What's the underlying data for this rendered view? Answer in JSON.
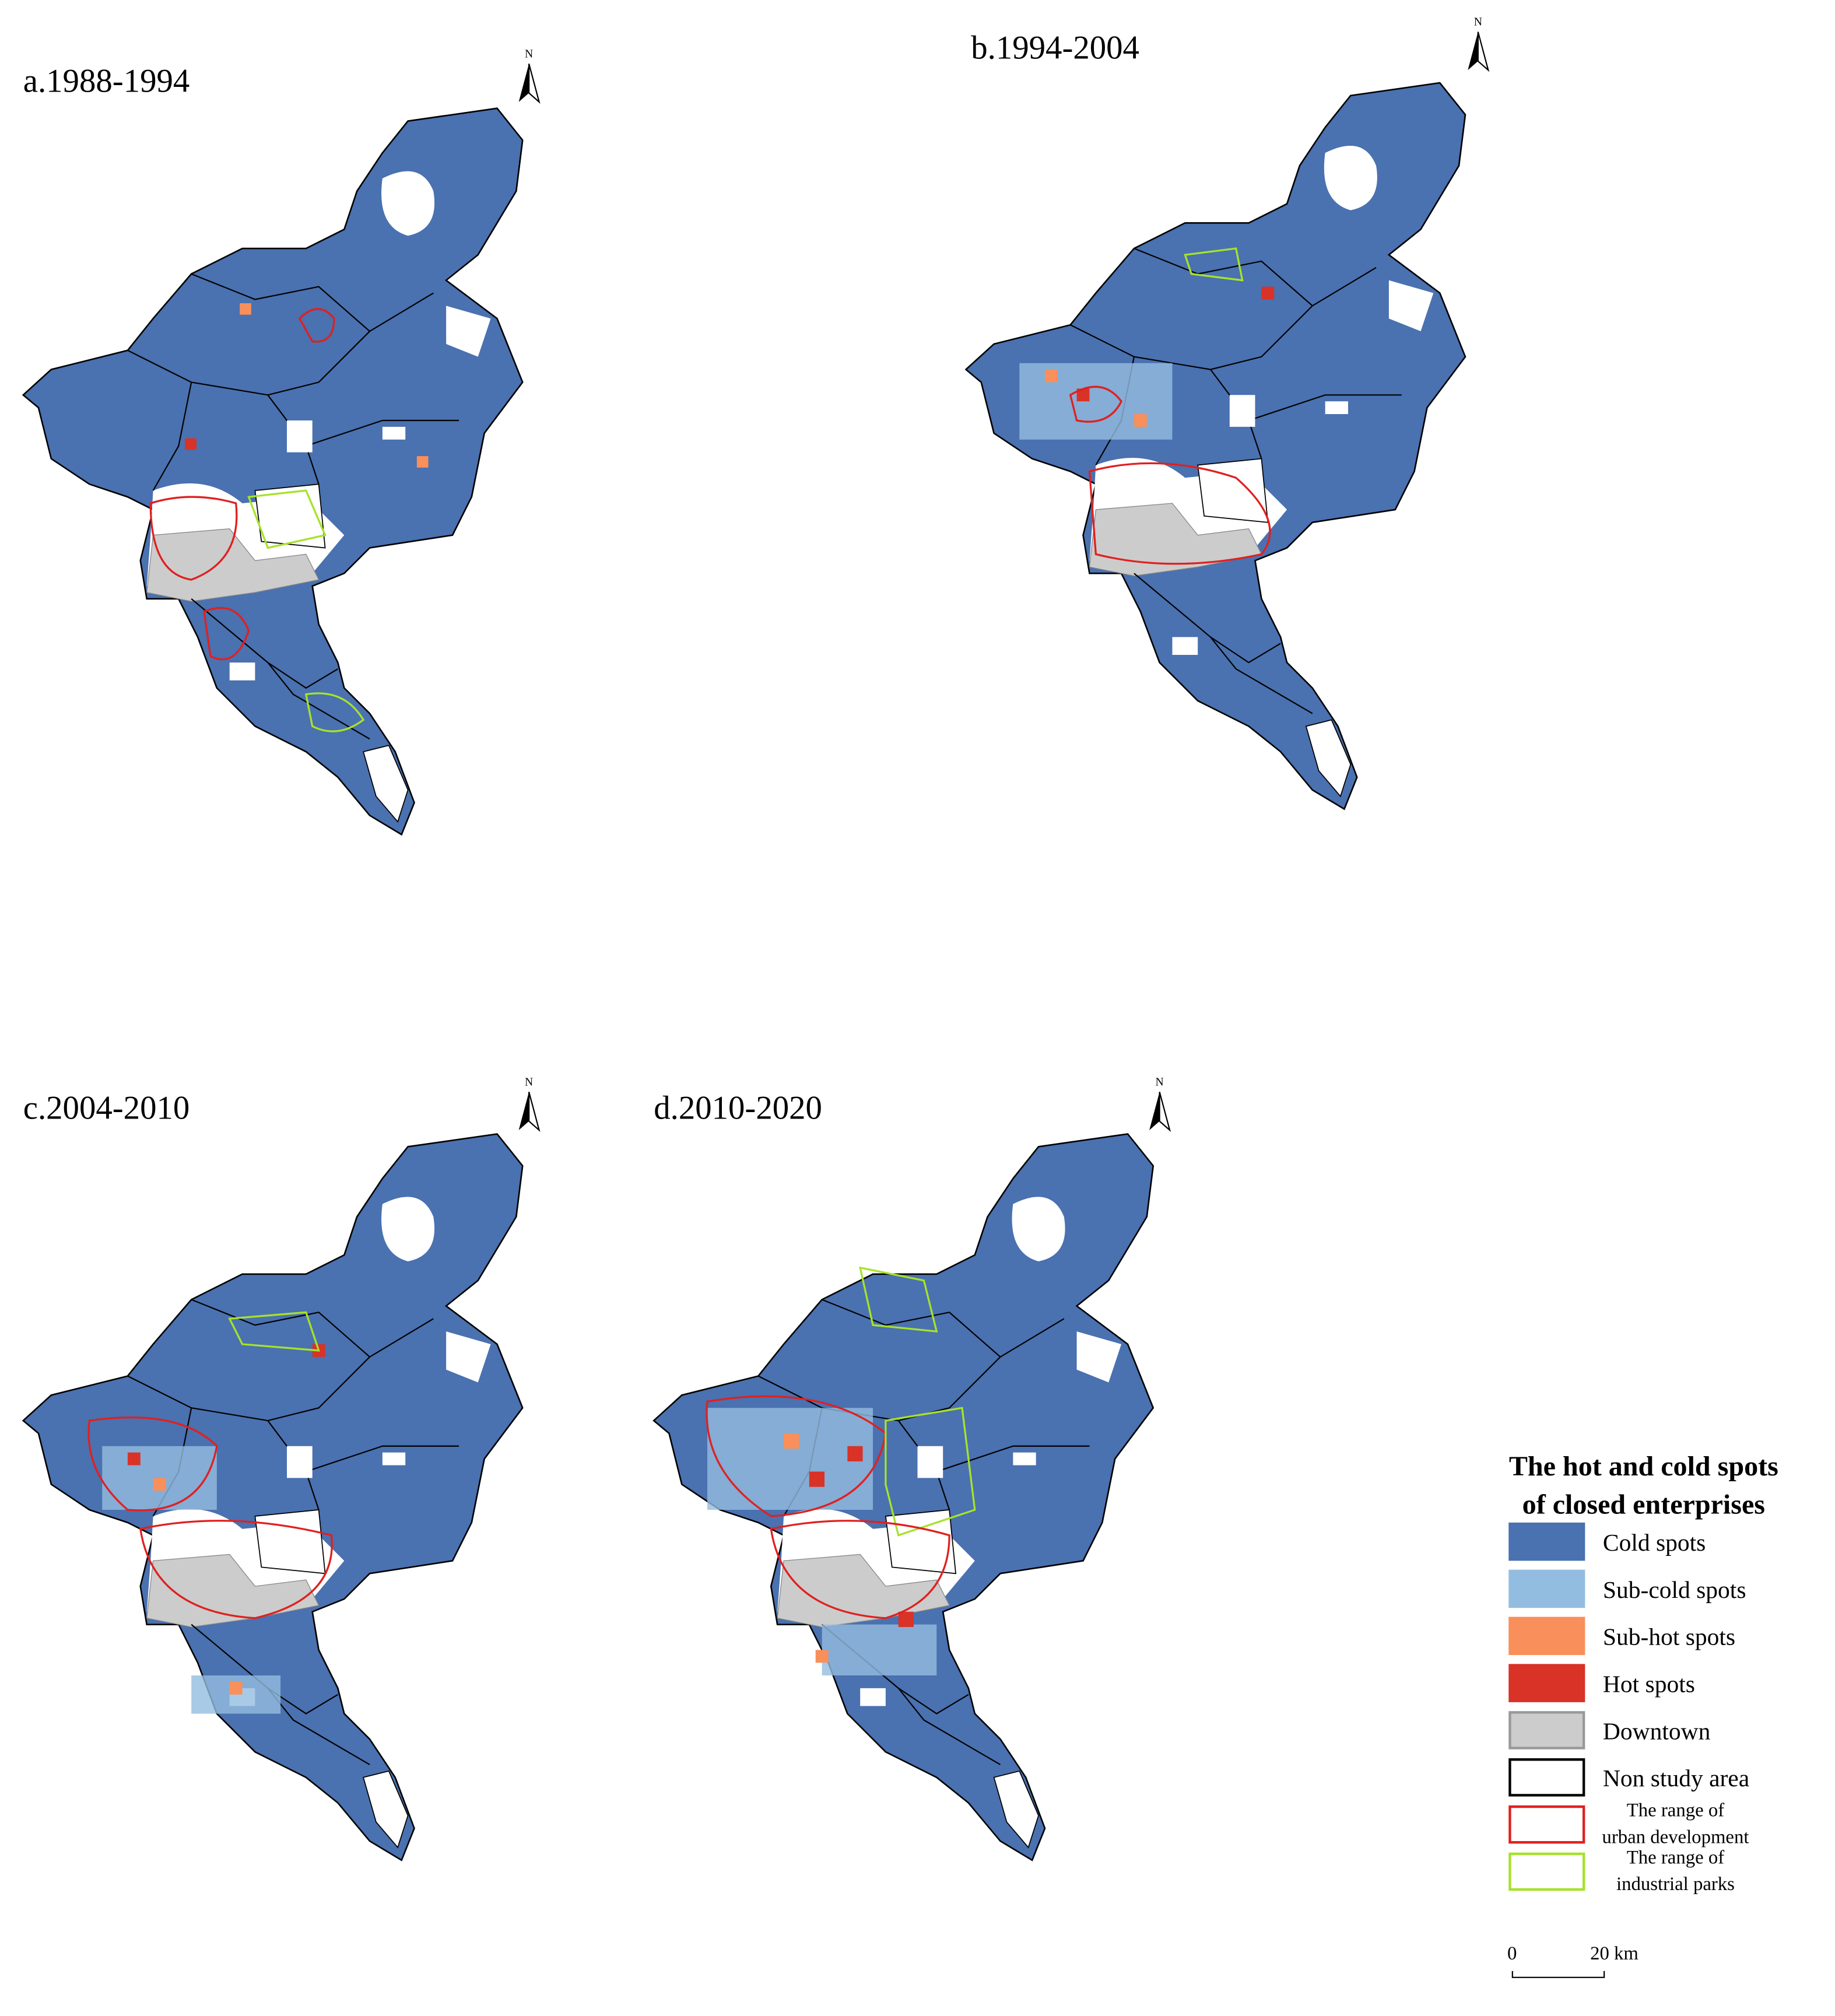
{
  "panels": [
    {
      "title": "a.1988-1994",
      "north": "N"
    },
    {
      "title": "b.1994-2004",
      "north": "N"
    },
    {
      "title": "c.2004-2010",
      "north": "N"
    },
    {
      "title": "d.2010-2020",
      "north": "N"
    }
  ],
  "legend": {
    "title_lines": [
      "The hot and cold spots",
      "of closed enterprises"
    ],
    "items": [
      {
        "label_lines": [
          "Cold spots"
        ],
        "fill": "#4a71b0",
        "stroke": "#4a71b0"
      },
      {
        "label_lines": [
          "Sub-cold spots"
        ],
        "fill": "#93bde0",
        "stroke": "#93bde0"
      },
      {
        "label_lines": [
          "Sub-hot spots"
        ],
        "fill": "#f98f5a",
        "stroke": "#f98f5a"
      },
      {
        "label_lines": [
          "Hot spots"
        ],
        "fill": "#d93227",
        "stroke": "#d93227"
      },
      {
        "label_lines": [
          "Downtown"
        ],
        "fill": "#cccccc",
        "stroke": "#999999"
      },
      {
        "label_lines": [
          "Non study area"
        ],
        "fill": "#ffffff",
        "stroke": "#000000"
      },
      {
        "label_lines": [
          "The range of",
          "urban development"
        ],
        "fill": "#ffffff",
        "stroke": "#e0201f"
      },
      {
        "label_lines": [
          "The range of",
          "industrial parks"
        ],
        "fill": "#ffffff",
        "stroke": "#a6e22a"
      }
    ]
  },
  "scale_bar": {
    "ticks": [
      "0",
      "20 km"
    ]
  }
}
